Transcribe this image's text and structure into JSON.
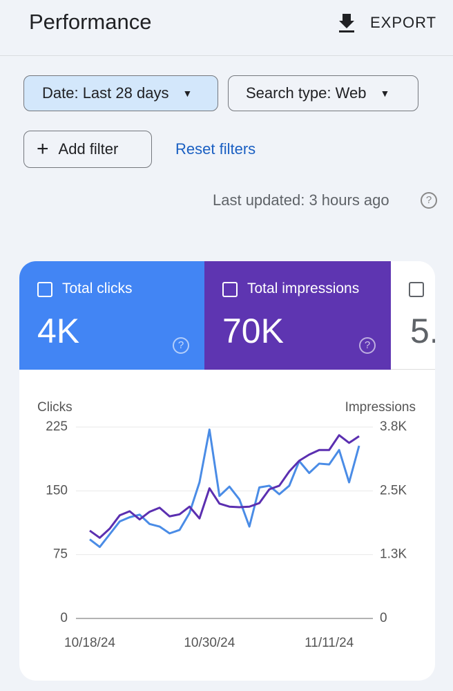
{
  "header": {
    "title": "Performance",
    "export": "EXPORT"
  },
  "filters": {
    "date": "Date: Last 28 days",
    "search_type": "Search type: Web",
    "add_filter": "Add filter",
    "reset": "Reset filters"
  },
  "last_updated": "Last updated: 3 hours ago",
  "metrics": [
    {
      "label": "Total clicks",
      "value": "4K"
    },
    {
      "label": "Total impressions",
      "value": "70K"
    },
    {
      "value": "5."
    }
  ],
  "chart_data": {
    "type": "line",
    "y_label": "Clicks",
    "y2_label": "Impressions",
    "categories": [
      "10/18/24",
      null,
      null,
      null,
      null,
      null,
      null,
      null,
      null,
      null,
      null,
      null,
      "10/30/24",
      null,
      null,
      null,
      null,
      null,
      null,
      null,
      null,
      null,
      null,
      null,
      "11/11/24",
      null,
      null,
      null
    ],
    "ylim": [
      0,
      225
    ],
    "yticks": [
      0,
      75,
      150,
      225
    ],
    "y2lim": [
      0,
      3750
    ],
    "y2ticks": [
      0,
      {
        "value": 1250,
        "label": "1.3K"
      },
      {
        "value": 2500,
        "label": "2.5K"
      },
      {
        "value": 3750,
        "label": "3.8K"
      }
    ],
    "grid": true,
    "series": [
      {
        "name": "Total clicks",
        "color": "#4a8ce6",
        "values": [
          93,
          84,
          99,
          114,
          119,
          122,
          111,
          108,
          100,
          104,
          124,
          160,
          222,
          144,
          155,
          140,
          108,
          154,
          156,
          146,
          156,
          185,
          171,
          182,
          181,
          198,
          160,
          203
        ]
      },
      {
        "name": "Total impressions",
        "color": "#5b2fb0",
        "axis": "y2",
        "values": [
          1720,
          1580,
          1760,
          2020,
          2100,
          1940,
          2090,
          2170,
          2000,
          2040,
          2190,
          1960,
          2550,
          2250,
          2190,
          2180,
          2190,
          2260,
          2530,
          2600,
          2880,
          3090,
          3210,
          3300,
          3300,
          3590,
          3440,
          3570
        ]
      }
    ]
  }
}
